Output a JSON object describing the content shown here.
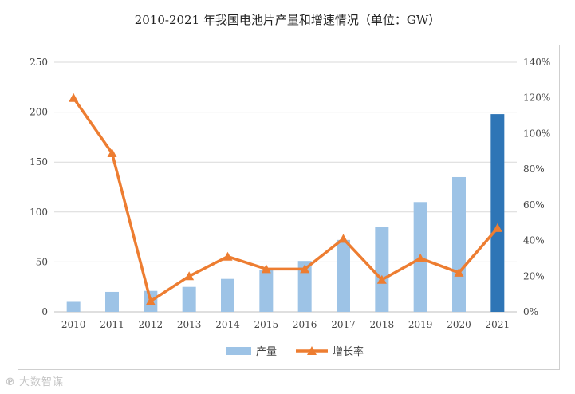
{
  "chart_data": {
    "type": "bar",
    "title": "2010-2021 年我国电池片产量和增速情况（单位：GW）",
    "categories": [
      "2010",
      "2011",
      "2012",
      "2013",
      "2014",
      "2015",
      "2016",
      "2017",
      "2018",
      "2019",
      "2020",
      "2021"
    ],
    "series": [
      {
        "name": "产量",
        "type": "bar",
        "axis": "left",
        "values": [
          10,
          20,
          21,
          25,
          33,
          42,
          51,
          72,
          85,
          110,
          135,
          198
        ],
        "color": "#9dc3e6",
        "highlight_color": "#2e75b6",
        "highlight_index": 11
      },
      {
        "name": "增长率",
        "type": "line",
        "axis": "right",
        "values": [
          120,
          89,
          6,
          20,
          31,
          24,
          24,
          41,
          18,
          30,
          22,
          47
        ],
        "color": "#ed7d31"
      }
    ],
    "left_axis": {
      "min": 0,
      "max": 250,
      "ticks": [
        "0",
        "50",
        "100",
        "150",
        "200",
        "250"
      ]
    },
    "right_axis": {
      "min": 0,
      "max": 140,
      "ticks": [
        "0%",
        "20%",
        "40%",
        "60%",
        "80%",
        "100%",
        "120%",
        "140%"
      ]
    },
    "grid": true,
    "legend_position": "bottom"
  },
  "watermark": {
    "icon": "℗",
    "text": "大数智谋"
  }
}
